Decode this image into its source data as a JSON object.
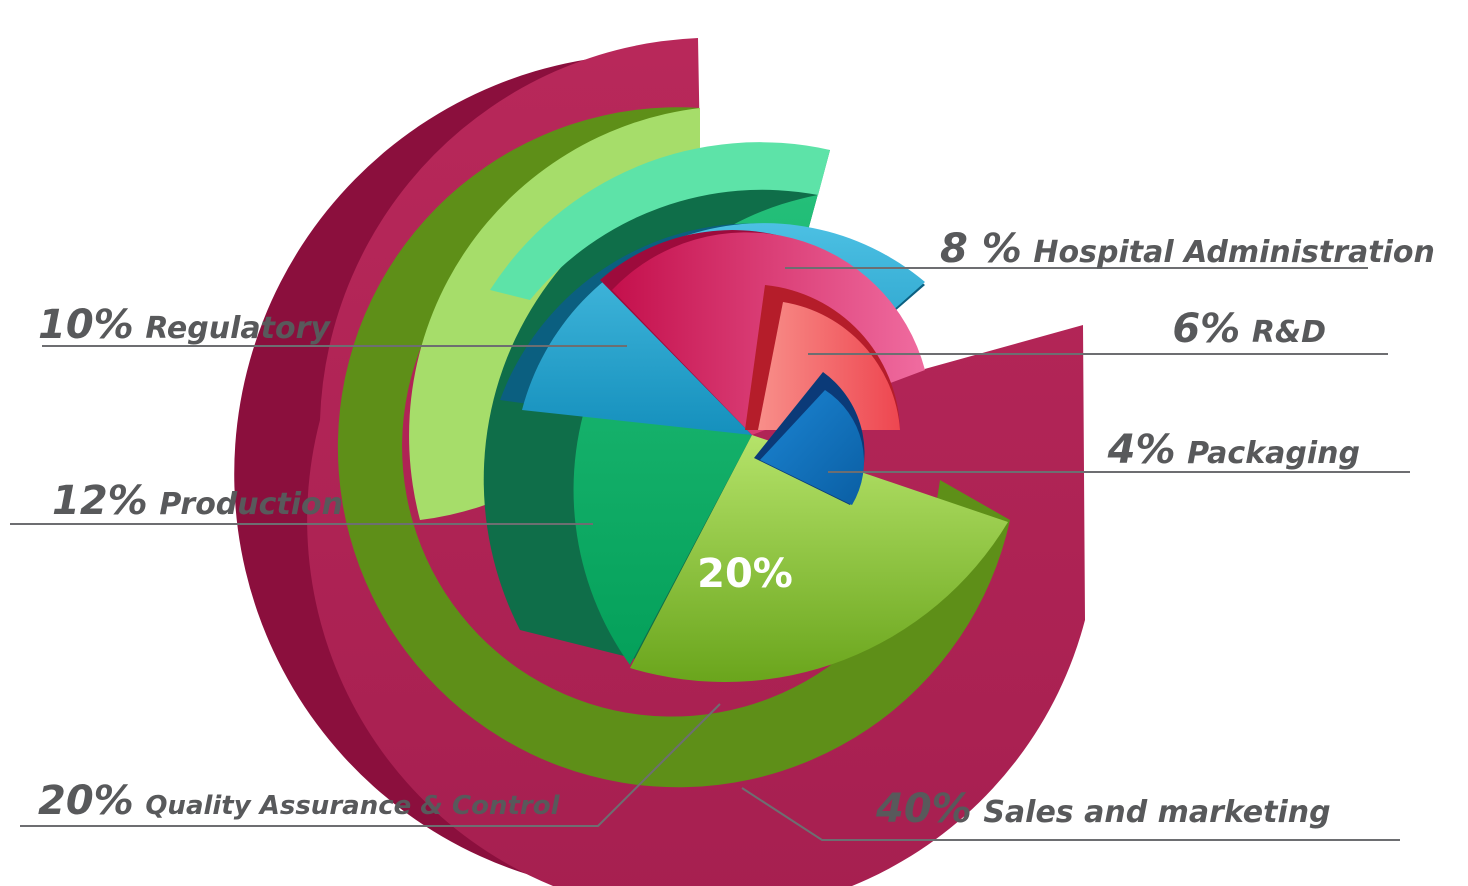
{
  "chart_data": {
    "type": "pie",
    "variant": "radial exploded pie with varying radii",
    "slices": [
      {
        "label": "Sales and marketing",
        "pct_text": "40%",
        "value": 40,
        "color": "#b02454"
      },
      {
        "label": "Quality Assurance & Control",
        "pct_text": "20%",
        "value": 20,
        "color": "#8cc63f"
      },
      {
        "label": "Production",
        "pct_text": "12%",
        "value": 12,
        "color": "#1fb06a"
      },
      {
        "label": "Regulatory",
        "pct_text": "10%",
        "value": 10,
        "color": "#2aa5cf"
      },
      {
        "label": "Hospital Administration",
        "pct_text": "8 %",
        "value": 8,
        "color": "#e8336d"
      },
      {
        "label": "R&D",
        "pct_text": "6%",
        "value": 6,
        "color": "#f2555e"
      },
      {
        "label": "Packaging",
        "pct_text": "4%",
        "value": 4,
        "color": "#0b69b3"
      }
    ],
    "center_label": "20%"
  }
}
